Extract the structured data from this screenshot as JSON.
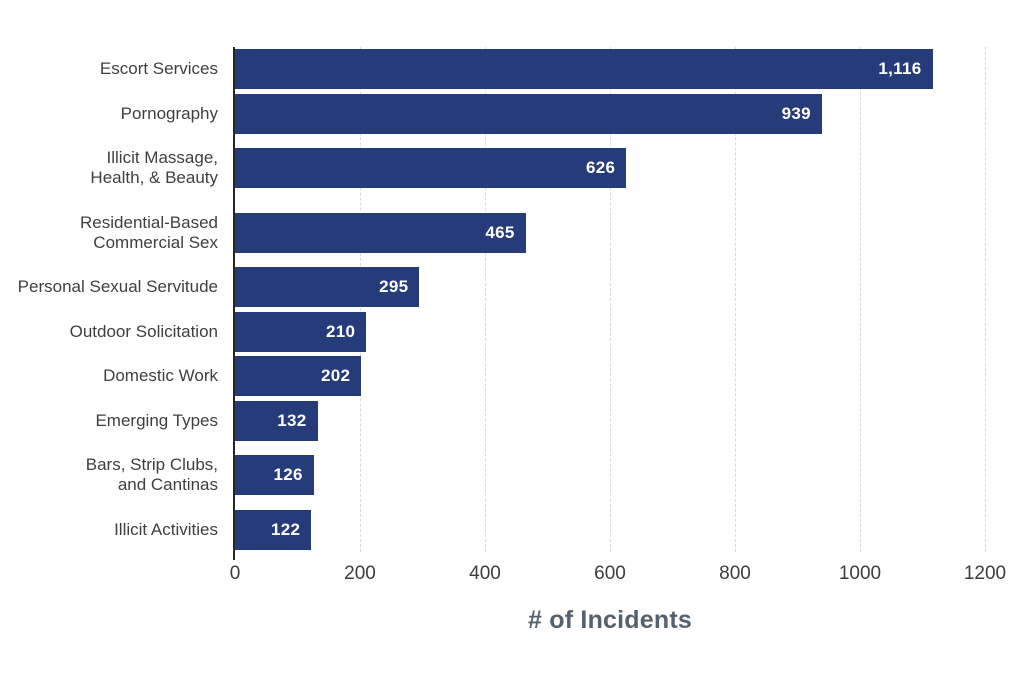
{
  "chart_data": {
    "type": "bar",
    "orientation": "horizontal",
    "title": "",
    "xlabel": "# of Incidents",
    "ylabel": "",
    "xlim": [
      0,
      1200
    ],
    "xticks": [
      0,
      200,
      400,
      600,
      800,
      1000,
      1200
    ],
    "grid": "vertical dashed gridlines at each x tick, solid axis line at 0",
    "legend": "none",
    "categories": [
      "Escort Services",
      "Pornography",
      "Illicit Massage,\nHealth, & Beauty",
      "Residential-Based\nCommercial Sex",
      "Personal Sexual Servitude",
      "Outdoor Solicitation",
      "Domestic Work",
      "Emerging Types",
      "Bars, Strip Clubs,\nand Cantinas",
      "Illicit Activities"
    ],
    "values": [
      1116,
      939,
      626,
      465,
      295,
      210,
      202,
      132,
      126,
      122
    ],
    "value_labels": [
      "1,116",
      "939",
      "626",
      "465",
      "295",
      "210",
      "202",
      "132",
      "126",
      "122"
    ]
  },
  "colors": {
    "background": "#ffffff",
    "bar": "#263c7a",
    "value_text": "#ffffff",
    "category_text": "#3f3f3f",
    "tick_text": "#3d3d3d",
    "axis_title_text": "#55626e",
    "gridline": "#d9d9d9",
    "axis_line": "#262626"
  }
}
